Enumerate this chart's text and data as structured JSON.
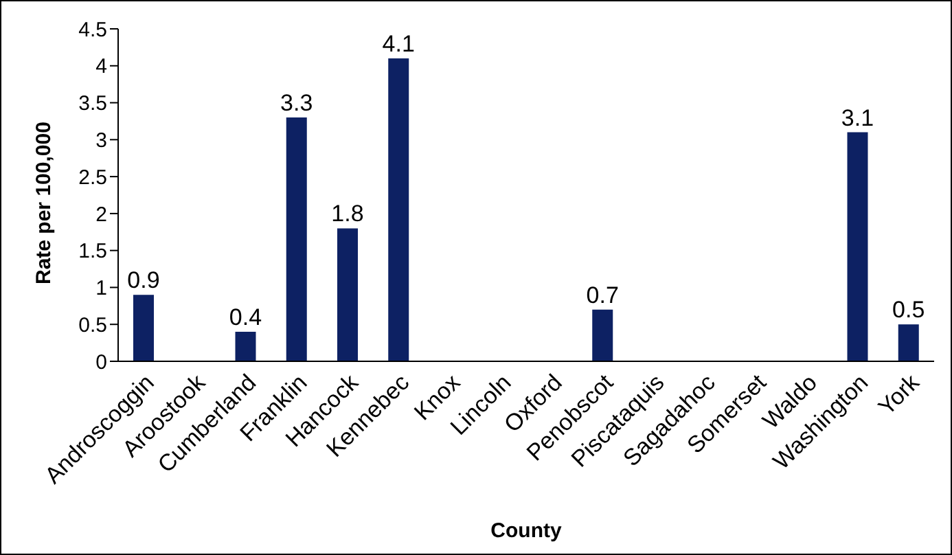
{
  "chart_data": {
    "type": "bar",
    "xlabel": "County",
    "ylabel": "Rate per 100,000",
    "categories": [
      "Androscoggin",
      "Aroostook",
      "Cumberland",
      "Franklin",
      "Hancock",
      "Kennebec",
      "Knox",
      "Lincoln",
      "Oxford",
      "Penobscot",
      "Piscataquis",
      "Sagadahoc",
      "Somerset",
      "Waldo",
      "Washington",
      "York"
    ],
    "values": [
      0.9,
      0,
      0.4,
      3.3,
      1.8,
      4.1,
      0,
      0,
      0,
      0.7,
      0,
      0,
      0,
      0,
      3.1,
      0.5
    ],
    "value_labels": [
      "0.9",
      null,
      "0.4",
      "3.3",
      "1.8",
      "4.1",
      null,
      null,
      null,
      "0.7",
      null,
      null,
      null,
      null,
      "3.1",
      "0.5"
    ],
    "color": "#0d2163",
    "ylim": [
      0,
      4.5
    ],
    "yticks": [
      0,
      0.5,
      1,
      1.5,
      2,
      2.5,
      3,
      3.5,
      4,
      4.5
    ],
    "grid": false,
    "legend": false
  }
}
